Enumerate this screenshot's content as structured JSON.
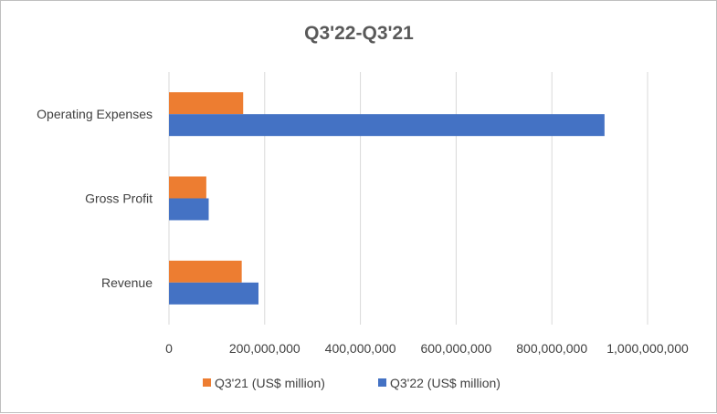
{
  "chart_data": {
    "type": "bar",
    "orientation": "horizontal",
    "title": "Q3'22-Q3'21",
    "categories": [
      "Operating Expenses",
      "Gross Profit",
      "Revenue"
    ],
    "series": [
      {
        "name": "Q3'21 (US$ million)",
        "color": "#ED7D31",
        "values": [
          155000000,
          78000000,
          152000000
        ]
      },
      {
        "name": "Q3'22 (US$ million)",
        "color": "#4472C4",
        "values": [
          910000000,
          83000000,
          187000000
        ]
      }
    ],
    "xlim": [
      0,
      1000000000
    ],
    "x_ticks": [
      "0",
      "200,000,000",
      "400,000,000",
      "600,000,000",
      "800,000,000",
      "1,000,000,000"
    ],
    "grid": "vertical",
    "legend": "bottom"
  }
}
